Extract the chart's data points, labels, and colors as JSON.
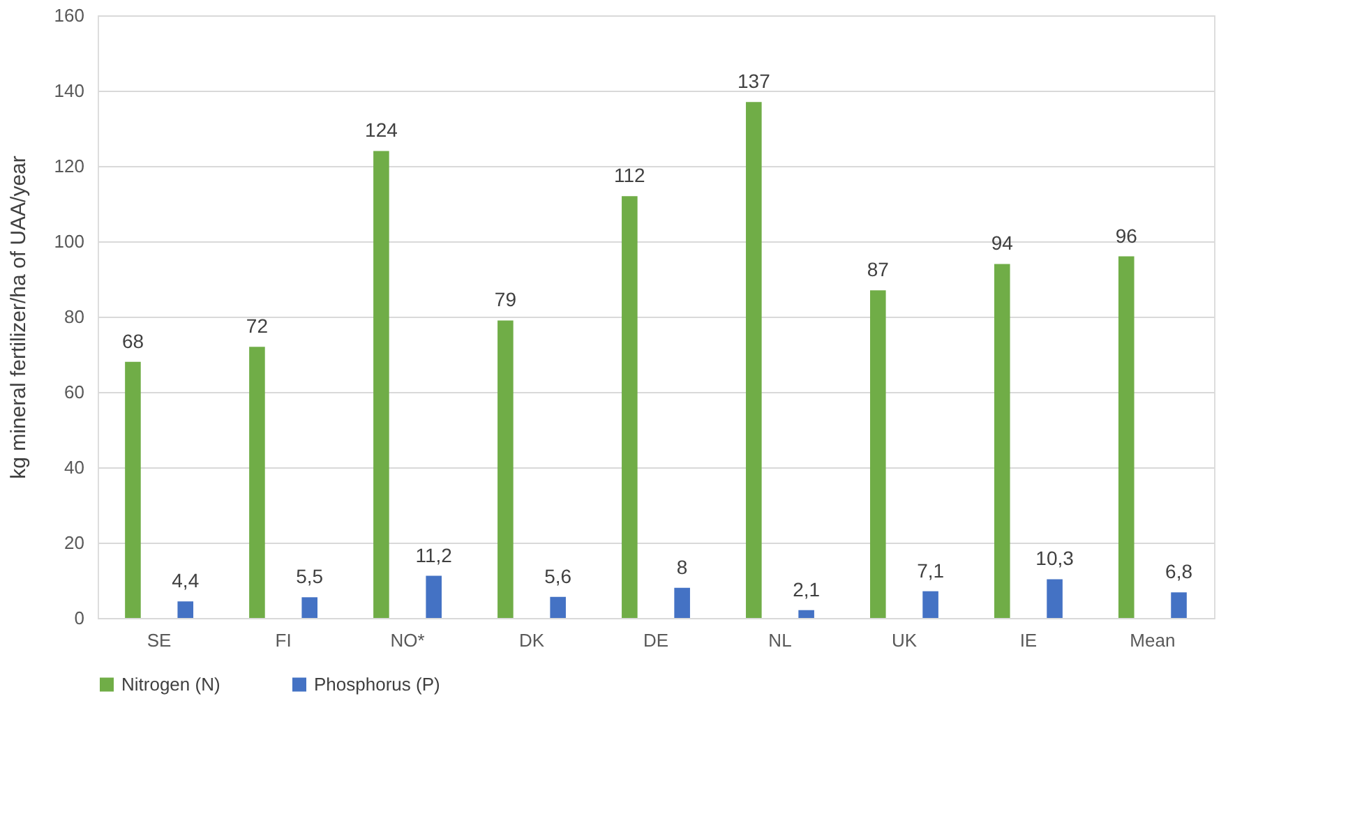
{
  "chart_data": {
    "type": "bar",
    "ylabel": "kg mineral fertilizer/ha of UAA/year",
    "categories": [
      "SE",
      "FI",
      "NO*",
      "DK",
      "DE",
      "NL",
      "UK",
      "IE",
      "Mean"
    ],
    "series": [
      {
        "name": "Nitrogen (N)",
        "color": "#70ad47",
        "values": [
          68,
          72,
          124,
          79,
          112,
          137,
          87,
          94,
          96
        ],
        "value_labels": [
          "68",
          "72",
          "124",
          "79",
          "112",
          "137",
          "87",
          "94",
          "96"
        ]
      },
      {
        "name": "Phosphorus (P)",
        "color": "#4472c4",
        "values": [
          4.4,
          5.5,
          11.2,
          5.6,
          8,
          2.1,
          7.1,
          10.3,
          6.8
        ],
        "value_labels": [
          "4,4",
          "5,5",
          "11,2",
          "5,6",
          "8",
          "2,1",
          "7,1",
          "10,3",
          "6,8"
        ]
      }
    ],
    "ylim": [
      0,
      160
    ],
    "yticks": [
      0,
      20,
      40,
      60,
      80,
      100,
      120,
      140,
      160
    ],
    "grid": "y",
    "legend": "bottom"
  }
}
